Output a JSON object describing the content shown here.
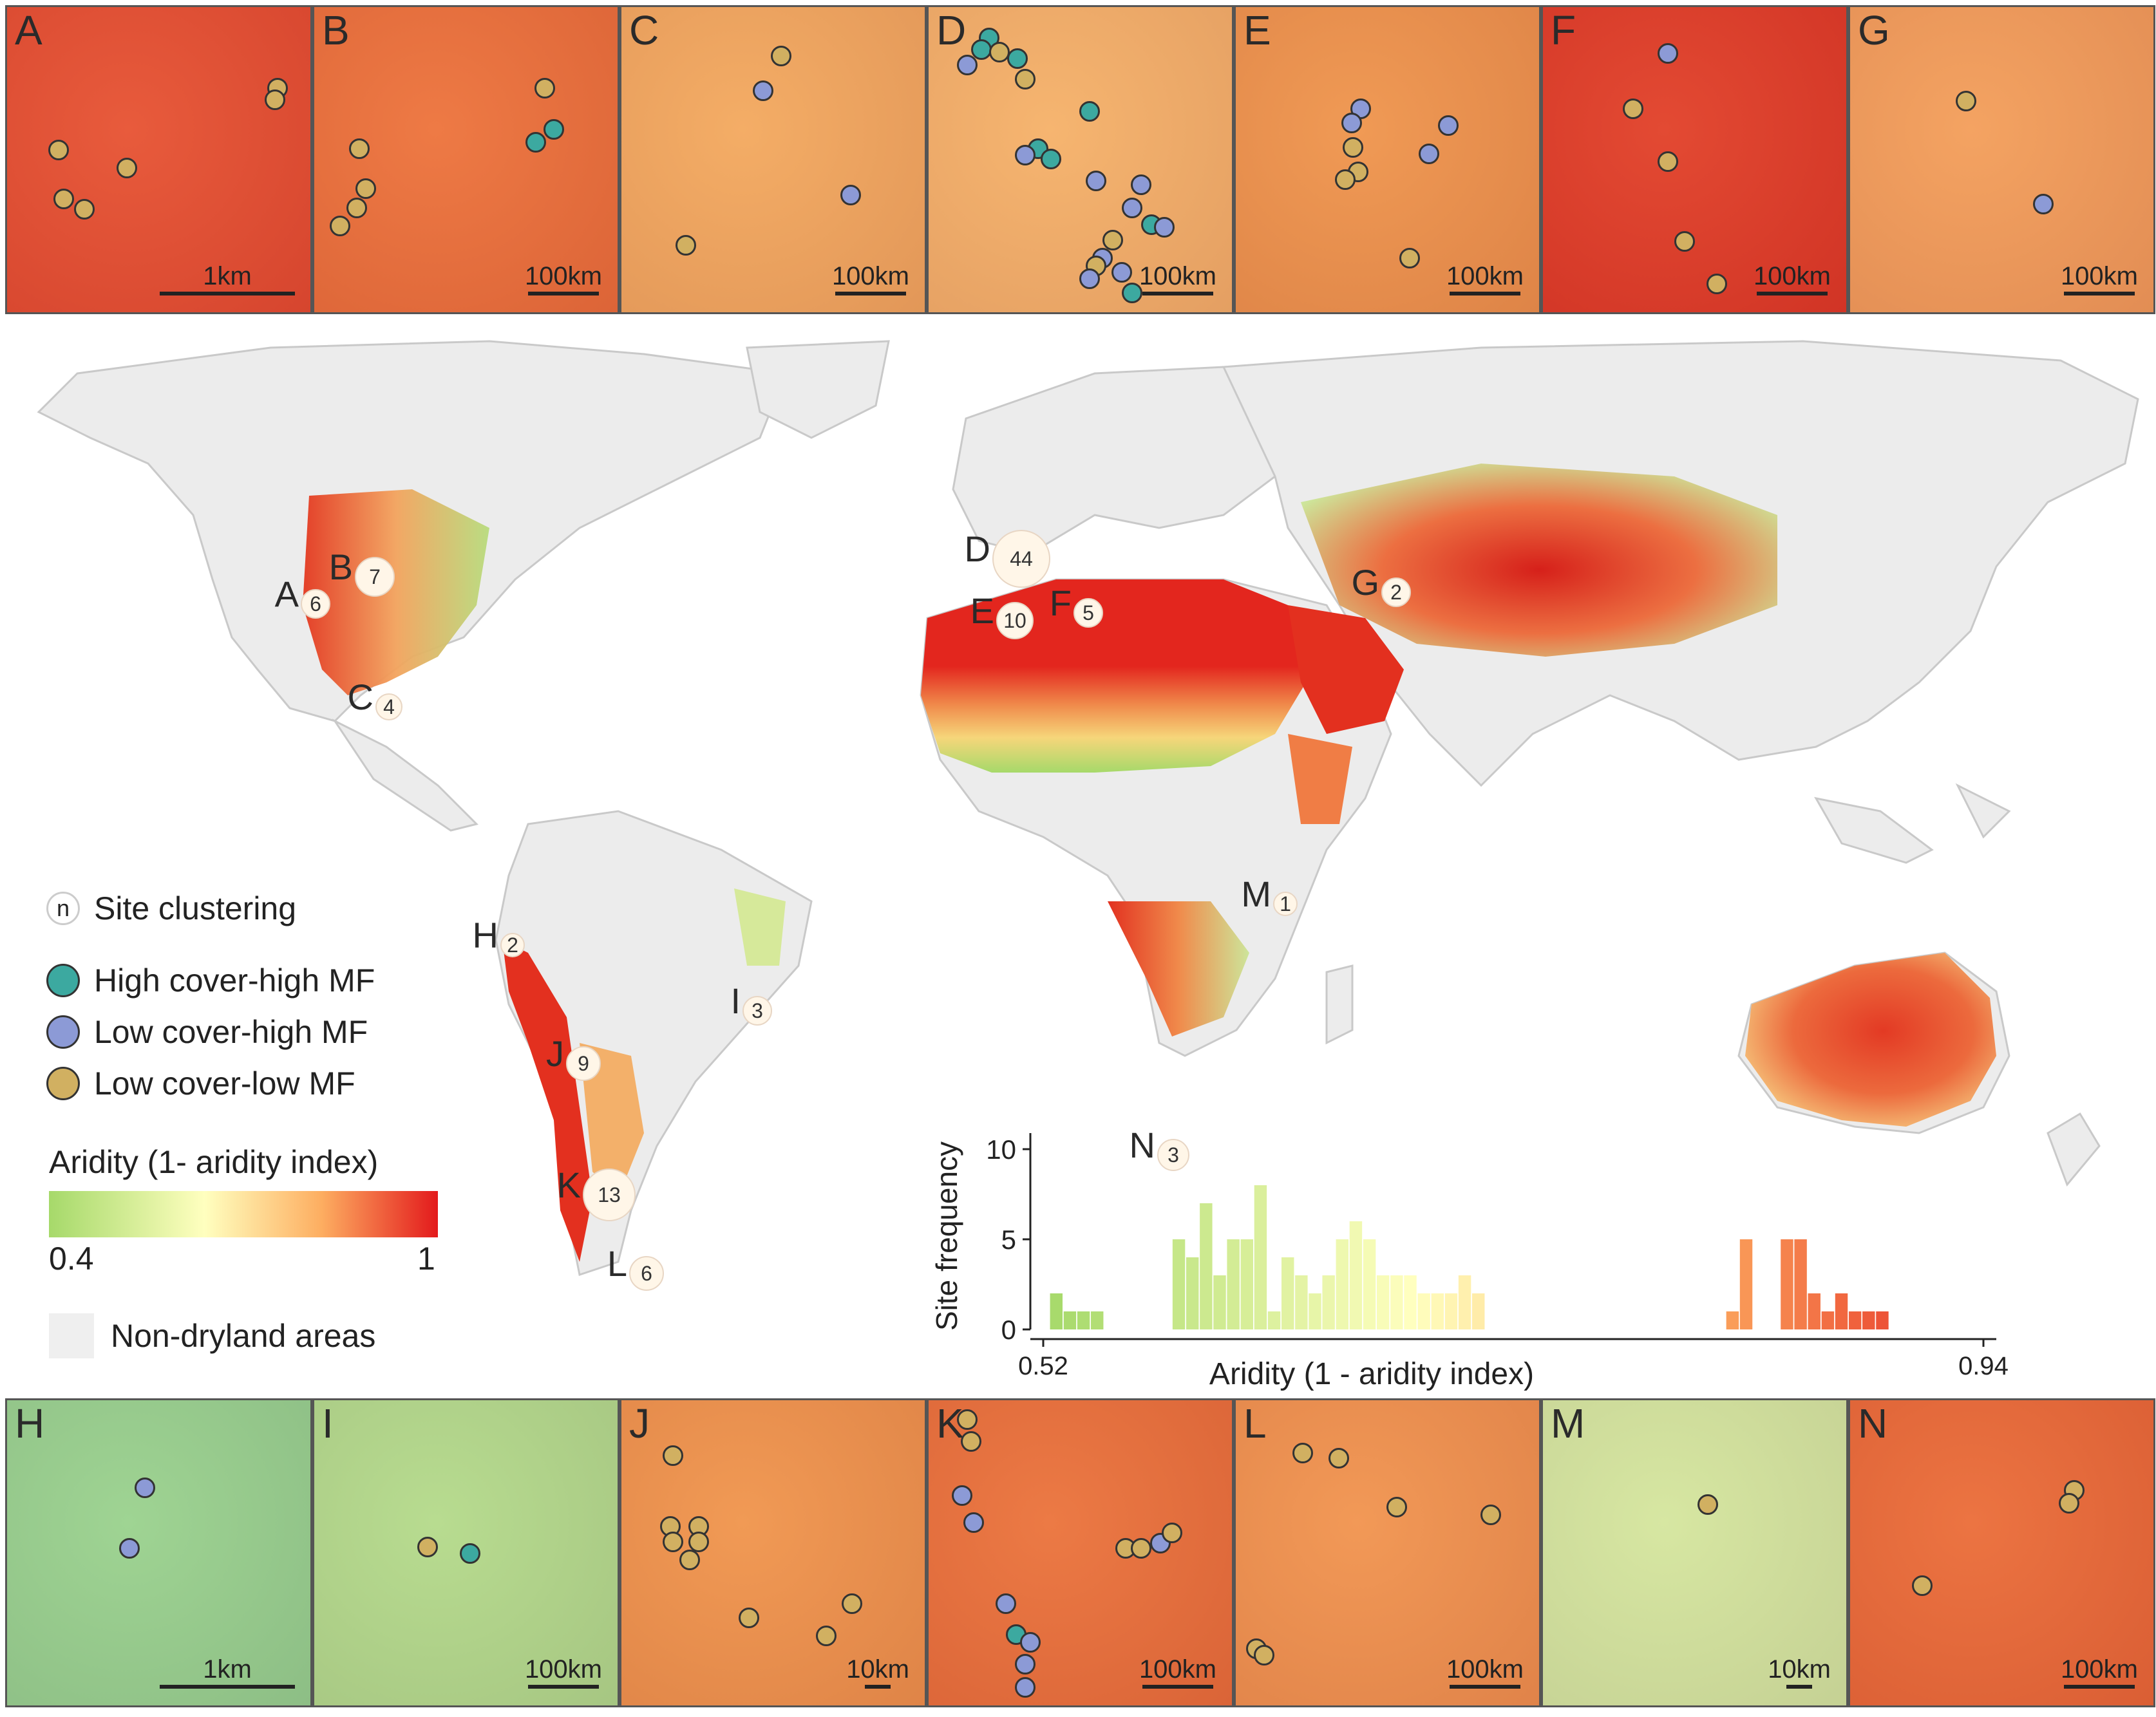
{
  "panels_top": [
    {
      "letter": "A",
      "scale": "1km",
      "bg": "#e85b3c",
      "dots": [
        [
          "ll",
          "a1"
        ],
        [
          "ll",
          "a2"
        ],
        [
          "ll",
          "a3"
        ],
        [
          "ll",
          "a4"
        ],
        [
          "ll",
          "a5"
        ],
        [
          "ll",
          "a6"
        ]
      ]
    },
    {
      "letter": "B",
      "scale": "100km",
      "bg": "#ee7a45",
      "dots": [
        [
          "ll",
          "b1"
        ],
        [
          "hh",
          "b2"
        ],
        [
          "hh",
          "b3"
        ],
        [
          "ll",
          "b4"
        ],
        [
          "ll",
          "b5"
        ],
        [
          "ll",
          "b6"
        ],
        [
          "ll",
          "b7"
        ]
      ]
    },
    {
      "letter": "C",
      "scale": "100km",
      "bg": "#f4ad66",
      "dots": [
        [
          "ll",
          "c1"
        ],
        [
          "lh",
          "c2"
        ],
        [
          "lh",
          "c3"
        ],
        [
          "ll",
          "c4"
        ]
      ]
    },
    {
      "letter": "D",
      "scale": "100km",
      "bg": "#f6b570",
      "dots": []
    },
    {
      "letter": "E",
      "scale": "100km",
      "bg": "#f09a55",
      "dots": []
    },
    {
      "letter": "F",
      "scale": "100km",
      "bg": "#e34a33",
      "dots": []
    },
    {
      "letter": "G",
      "scale": "100km",
      "bg": "#f4a362",
      "dots": []
    }
  ],
  "panels_bottom": [
    {
      "letter": "H",
      "scale": "1km",
      "bg": "#9fd493"
    },
    {
      "letter": "I",
      "scale": "100km",
      "bg": "#b8dc90"
    },
    {
      "letter": "J",
      "scale": "10km",
      "bg": "#f19a55"
    },
    {
      "letter": "K",
      "scale": "100km",
      "bg": "#ec7a45"
    },
    {
      "letter": "L",
      "scale": "100km",
      "bg": "#f29957"
    },
    {
      "letter": "M",
      "scale": "10km",
      "bg": "#d7e7a2"
    },
    {
      "letter": "N",
      "scale": "100km",
      "bg": "#ec7442"
    }
  ],
  "sites": [
    {
      "label": "A",
      "count": "6"
    },
    {
      "label": "B",
      "count": "7"
    },
    {
      "label": "C",
      "count": "4"
    },
    {
      "label": "D",
      "count": "44"
    },
    {
      "label": "E",
      "count": "10"
    },
    {
      "label": "F",
      "count": "5"
    },
    {
      "label": "G",
      "count": "2"
    },
    {
      "label": "H",
      "count": "2"
    },
    {
      "label": "I",
      "count": "3"
    },
    {
      "label": "J",
      "count": "9"
    },
    {
      "label": "K",
      "count": "13"
    },
    {
      "label": "L",
      "count": "6"
    },
    {
      "label": "M",
      "count": "1"
    },
    {
      "label": "N",
      "count": "3"
    }
  ],
  "legend": {
    "clustering_symbol": "n",
    "clustering_label": "Site clustering",
    "high_high": "High cover-high MF",
    "low_high": "Low cover-high MF",
    "low_low": "Low cover-low MF",
    "aridity_title": "Aridity (1- aridity index)",
    "aridity_min": "0.4",
    "aridity_max": "1",
    "non_dryland": "Non-dryland areas"
  },
  "colors": {
    "high_high": "#3ca9a0",
    "low_high": "#8c9ad6",
    "low_low": "#d1b061",
    "aridity_low": "#a6d96a",
    "aridity_mid": "#ffffbf",
    "aridity_high": "#e31a1c",
    "non_dryland": "#efefef"
  },
  "chart_data": {
    "type": "bar",
    "xlabel": "Aridity (1 - aridity index)",
    "ylabel": "Site frequency",
    "xlim": [
      0.52,
      0.94
    ],
    "ylim": [
      0,
      10
    ],
    "x_tick_labels": [
      "0.52",
      "0.94"
    ],
    "y_ticks": [
      0,
      5,
      10
    ],
    "bins": [
      {
        "x": 0.523,
        "value": 2
      },
      {
        "x": 0.529,
        "value": 1
      },
      {
        "x": 0.535,
        "value": 1
      },
      {
        "x": 0.541,
        "value": 1
      },
      {
        "x": 0.577,
        "value": 5
      },
      {
        "x": 0.583,
        "value": 4
      },
      {
        "x": 0.589,
        "value": 7
      },
      {
        "x": 0.595,
        "value": 3
      },
      {
        "x": 0.601,
        "value": 5
      },
      {
        "x": 0.607,
        "value": 5
      },
      {
        "x": 0.613,
        "value": 8
      },
      {
        "x": 0.619,
        "value": 1
      },
      {
        "x": 0.625,
        "value": 4
      },
      {
        "x": 0.631,
        "value": 3
      },
      {
        "x": 0.637,
        "value": 2
      },
      {
        "x": 0.643,
        "value": 3
      },
      {
        "x": 0.649,
        "value": 5
      },
      {
        "x": 0.655,
        "value": 6
      },
      {
        "x": 0.661,
        "value": 5
      },
      {
        "x": 0.667,
        "value": 3
      },
      {
        "x": 0.673,
        "value": 3
      },
      {
        "x": 0.679,
        "value": 3
      },
      {
        "x": 0.685,
        "value": 2
      },
      {
        "x": 0.691,
        "value": 2
      },
      {
        "x": 0.697,
        "value": 2
      },
      {
        "x": 0.703,
        "value": 3
      },
      {
        "x": 0.709,
        "value": 2
      },
      {
        "x": 0.821,
        "value": 1
      },
      {
        "x": 0.827,
        "value": 5
      },
      {
        "x": 0.845,
        "value": 5
      },
      {
        "x": 0.851,
        "value": 5
      },
      {
        "x": 0.857,
        "value": 2
      },
      {
        "x": 0.863,
        "value": 1
      },
      {
        "x": 0.869,
        "value": 2
      },
      {
        "x": 0.875,
        "value": 1
      },
      {
        "x": 0.881,
        "value": 1
      },
      {
        "x": 0.887,
        "value": 1
      }
    ]
  }
}
